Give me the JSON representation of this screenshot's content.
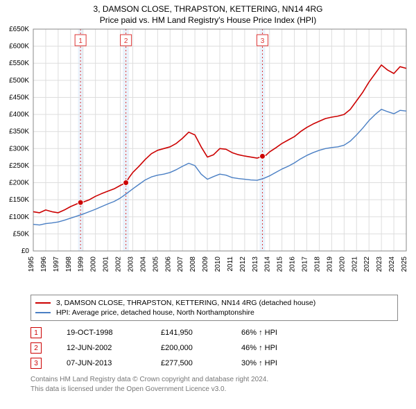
{
  "title": "3, DAMSON CLOSE, THRAPSTON, KETTERING, NN14 4RG",
  "subtitle": "Price paid vs. HM Land Registry's House Price Index (HPI)",
  "chart": {
    "type": "line",
    "background_color": "#ffffff",
    "plot_border_color": "#888888",
    "grid_color": "#dddddd",
    "band_color": "#eaf2fb",
    "sale_line_color": "#dd3333",
    "sale_line_dash": "2,3",
    "marker_radius": 4,
    "title_fontsize": 12,
    "axis_fontsize": 10,
    "x": {
      "min": 1995,
      "max": 2025,
      "ticks": [
        1995,
        1996,
        1997,
        1998,
        1999,
        2000,
        2001,
        2002,
        2003,
        2004,
        2005,
        2006,
        2007,
        2008,
        2009,
        2010,
        2011,
        2012,
        2013,
        2014,
        2015,
        2016,
        2017,
        2018,
        2019,
        2020,
        2021,
        2022,
        2023,
        2024,
        2025
      ]
    },
    "y": {
      "min": 0,
      "max": 650000,
      "tick_step": 50000,
      "prefix": "£",
      "suffix": "K",
      "ticks": [
        0,
        50000,
        100000,
        150000,
        200000,
        250000,
        300000,
        350000,
        400000,
        450000,
        500000,
        550000,
        600000,
        650000
      ]
    },
    "series": [
      {
        "name": "3, DAMSON CLOSE, THRAPSTON, KETTERING, NN14 4RG (detached house)",
        "color": "#cc0000",
        "width": 1.6,
        "points": [
          [
            1995.0,
            115000
          ],
          [
            1995.5,
            112000
          ],
          [
            1996.0,
            120000
          ],
          [
            1996.5,
            115000
          ],
          [
            1997.0,
            112000
          ],
          [
            1997.5,
            120000
          ],
          [
            1998.0,
            130000
          ],
          [
            1998.5,
            138000
          ],
          [
            1998.8,
            141950
          ],
          [
            1999.0,
            143000
          ],
          [
            1999.5,
            150000
          ],
          [
            2000.0,
            160000
          ],
          [
            2000.5,
            168000
          ],
          [
            2001.0,
            175000
          ],
          [
            2001.5,
            182000
          ],
          [
            2002.0,
            192000
          ],
          [
            2002.45,
            200000
          ],
          [
            2002.7,
            215000
          ],
          [
            2003.0,
            230000
          ],
          [
            2003.5,
            248000
          ],
          [
            2004.0,
            268000
          ],
          [
            2004.5,
            285000
          ],
          [
            2005.0,
            295000
          ],
          [
            2005.5,
            300000
          ],
          [
            2006.0,
            305000
          ],
          [
            2006.5,
            315000
          ],
          [
            2007.0,
            330000
          ],
          [
            2007.5,
            348000
          ],
          [
            2008.0,
            340000
          ],
          [
            2008.5,
            305000
          ],
          [
            2009.0,
            275000
          ],
          [
            2009.5,
            282000
          ],
          [
            2010.0,
            300000
          ],
          [
            2010.5,
            298000
          ],
          [
            2011.0,
            288000
          ],
          [
            2011.5,
            282000
          ],
          [
            2012.0,
            278000
          ],
          [
            2012.5,
            275000
          ],
          [
            2013.0,
            272000
          ],
          [
            2013.43,
            277500
          ],
          [
            2013.7,
            280000
          ],
          [
            2014.0,
            290000
          ],
          [
            2014.5,
            302000
          ],
          [
            2015.0,
            315000
          ],
          [
            2015.5,
            325000
          ],
          [
            2016.0,
            335000
          ],
          [
            2016.5,
            350000
          ],
          [
            2017.0,
            362000
          ],
          [
            2017.5,
            372000
          ],
          [
            2018.0,
            380000
          ],
          [
            2018.5,
            388000
          ],
          [
            2019.0,
            392000
          ],
          [
            2019.5,
            395000
          ],
          [
            2020.0,
            400000
          ],
          [
            2020.5,
            415000
          ],
          [
            2021.0,
            440000
          ],
          [
            2021.5,
            465000
          ],
          [
            2022.0,
            495000
          ],
          [
            2022.5,
            520000
          ],
          [
            2023.0,
            545000
          ],
          [
            2023.5,
            530000
          ],
          [
            2024.0,
            520000
          ],
          [
            2024.5,
            540000
          ],
          [
            2025.0,
            535000
          ]
        ]
      },
      {
        "name": "HPI: Average price, detached house, North Northamptonshire",
        "color": "#4a7fc4",
        "width": 1.4,
        "points": [
          [
            1995.0,
            78000
          ],
          [
            1995.5,
            76000
          ],
          [
            1996.0,
            80000
          ],
          [
            1996.5,
            82000
          ],
          [
            1997.0,
            85000
          ],
          [
            1997.5,
            90000
          ],
          [
            1998.0,
            96000
          ],
          [
            1998.5,
            102000
          ],
          [
            1999.0,
            108000
          ],
          [
            1999.5,
            115000
          ],
          [
            2000.0,
            122000
          ],
          [
            2000.5,
            130000
          ],
          [
            2001.0,
            138000
          ],
          [
            2001.5,
            145000
          ],
          [
            2002.0,
            155000
          ],
          [
            2002.5,
            168000
          ],
          [
            2003.0,
            182000
          ],
          [
            2003.5,
            195000
          ],
          [
            2004.0,
            208000
          ],
          [
            2004.5,
            217000
          ],
          [
            2005.0,
            222000
          ],
          [
            2005.5,
            225000
          ],
          [
            2006.0,
            230000
          ],
          [
            2006.5,
            238000
          ],
          [
            2007.0,
            248000
          ],
          [
            2007.5,
            257000
          ],
          [
            2008.0,
            250000
          ],
          [
            2008.5,
            225000
          ],
          [
            2009.0,
            210000
          ],
          [
            2009.5,
            218000
          ],
          [
            2010.0,
            225000
          ],
          [
            2010.5,
            222000
          ],
          [
            2011.0,
            215000
          ],
          [
            2011.5,
            212000
          ],
          [
            2012.0,
            210000
          ],
          [
            2012.5,
            208000
          ],
          [
            2013.0,
            207000
          ],
          [
            2013.5,
            212000
          ],
          [
            2014.0,
            220000
          ],
          [
            2014.5,
            230000
          ],
          [
            2015.0,
            240000
          ],
          [
            2015.5,
            248000
          ],
          [
            2016.0,
            258000
          ],
          [
            2016.5,
            270000
          ],
          [
            2017.0,
            280000
          ],
          [
            2017.5,
            288000
          ],
          [
            2018.0,
            295000
          ],
          [
            2018.5,
            300000
          ],
          [
            2019.0,
            303000
          ],
          [
            2019.5,
            305000
          ],
          [
            2020.0,
            310000
          ],
          [
            2020.5,
            322000
          ],
          [
            2021.0,
            340000
          ],
          [
            2021.5,
            360000
          ],
          [
            2022.0,
            382000
          ],
          [
            2022.5,
            400000
          ],
          [
            2023.0,
            415000
          ],
          [
            2023.5,
            408000
          ],
          [
            2024.0,
            402000
          ],
          [
            2024.5,
            412000
          ],
          [
            2025.0,
            410000
          ]
        ]
      }
    ],
    "bands": [
      {
        "from": 1998.6,
        "to": 1999.0
      },
      {
        "from": 2002.2,
        "to": 2002.7
      },
      {
        "from": 2013.2,
        "to": 2013.65
      }
    ],
    "sale_markers": [
      {
        "n": "1",
        "x": 1998.8,
        "y": 141950
      },
      {
        "n": "2",
        "x": 2002.45,
        "y": 200000
      },
      {
        "n": "3",
        "x": 2013.43,
        "y": 277500
      }
    ]
  },
  "legend": [
    {
      "color": "#cc0000",
      "label": "3, DAMSON CLOSE, THRAPSTON, KETTERING, NN14 4RG (detached house)"
    },
    {
      "color": "#4a7fc4",
      "label": "HPI: Average price, detached house, North Northamptonshire"
    }
  ],
  "sales": [
    {
      "n": "1",
      "date": "19-OCT-1998",
      "price": "£141,950",
      "hpi": "66% ↑ HPI"
    },
    {
      "n": "2",
      "date": "12-JUN-2002",
      "price": "£200,000",
      "hpi": "46% ↑ HPI"
    },
    {
      "n": "3",
      "date": "07-JUN-2013",
      "price": "£277,500",
      "hpi": "30% ↑ HPI"
    }
  ],
  "attribution_line1": "Contains HM Land Registry data © Crown copyright and database right 2024.",
  "attribution_line2": "This data is licensed under the Open Government Licence v3.0."
}
